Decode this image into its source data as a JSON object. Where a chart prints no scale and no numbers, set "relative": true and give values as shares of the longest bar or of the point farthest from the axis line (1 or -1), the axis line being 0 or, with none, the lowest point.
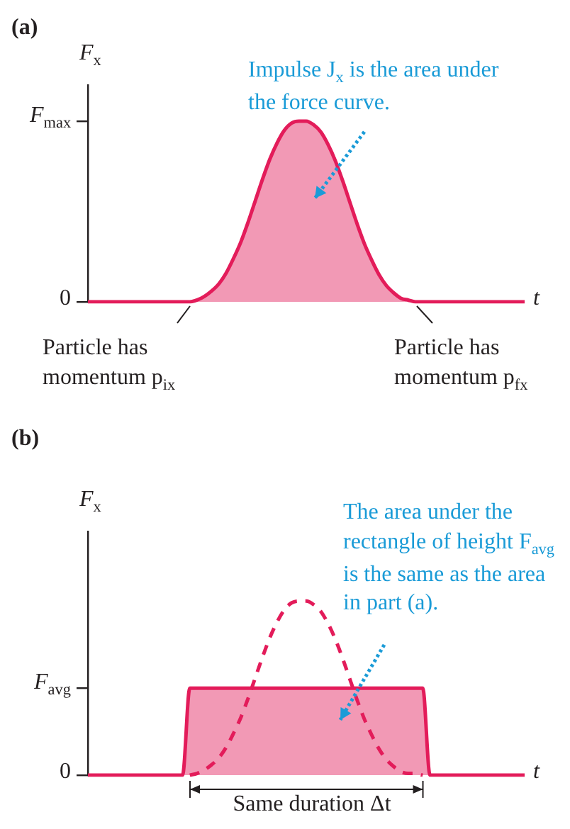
{
  "chart_data": [
    {
      "type": "area",
      "title": "(a)",
      "xlabel": "t",
      "ylabel": "F$_{x}$",
      "marker": "none",
      "categories": [
        null,
        null,
        null,
        null,
        null,
        null,
        null,
        null,
        null,
        null,
        null,
        null,
        null,
        null,
        null,
        null,
        null,
        null,
        null,
        null,
        null,
        null,
        null,
        null,
        null,
        null,
        null,
        null,
        null,
        null,
        null,
        null,
        null,
        null,
        null,
        null,
        null,
        null,
        null,
        null,
        null,
        null,
        null,
        null,
        null,
        null,
        null,
        null,
        null,
        null,
        null,
        null,
        null,
        null,
        null,
        null,
        null,
        null,
        null,
        null,
        null
      ],
      "series": [
        {
          "color": "#e31c5a",
          "values": [
            0,
            0,
            0,
            0,
            0,
            0,
            0,
            0,
            0,
            0,
            0,
            0,
            0,
            0,
            0,
            0.01,
            0.03,
            0.06,
            0.1,
            0.16,
            0.24,
            0.33,
            0.44,
            0.56,
            0.68,
            0.79,
            0.88,
            0.95,
            0.99,
            1,
            1,
            0.98,
            0.94,
            0.87,
            0.78,
            0.67,
            0.55,
            0.43,
            0.32,
            0.23,
            0.15,
            0.09,
            0.05,
            0.02,
            0.01,
            0,
            0,
            0,
            0,
            0,
            0,
            0,
            0,
            0,
            0,
            0,
            0,
            0,
            0,
            0,
            0
          ]
        }
      ],
      "relative": true,
      "annotations": [
        "0",
        "F$_{max}$",
        "Impulse J$_{x}$ is the area under the force curve.",
        "Particle has momentum p$_{ix}$",
        "Particle has momentum p$_{fx}$"
      ]
    },
    {
      "type": "area",
      "title": "(b)",
      "xlabel": "t",
      "ylabel": "F$_{x}$",
      "marker": "none",
      "categories": [
        null,
        null,
        null,
        null,
        null,
        null,
        null,
        null,
        null,
        null,
        null,
        null,
        null,
        null,
        null,
        null,
        null,
        null,
        null,
        null,
        null,
        null,
        null,
        null,
        null,
        null,
        null,
        null,
        null,
        null,
        null,
        null,
        null,
        null,
        null,
        null,
        null,
        null,
        null,
        null,
        null,
        null,
        null,
        null,
        null,
        null,
        null,
        null,
        null,
        null,
        null,
        null,
        null,
        null,
        null,
        null,
        null,
        null,
        null,
        null,
        null
      ],
      "series": [
        {
          "color": "#e31c5a",
          "values": [
            0,
            0,
            0,
            0,
            0,
            0,
            0,
            0,
            0,
            0,
            0,
            0,
            0,
            0,
            0.5,
            0.5,
            0.5,
            0.5,
            0.5,
            0.5,
            0.5,
            0.5,
            0.5,
            0.5,
            0.5,
            0.5,
            0.5,
            0.5,
            0.5,
            0.5,
            0.5,
            0.5,
            0.5,
            0.5,
            0.5,
            0.5,
            0.5,
            0.5,
            0.5,
            0.5,
            0.5,
            0.5,
            0.5,
            0.5,
            0.5,
            0.5,
            0.5,
            0,
            0,
            0,
            0,
            0,
            0,
            0,
            0,
            0,
            0,
            0,
            0,
            0,
            0
          ]
        },
        {
          "type": "line",
          "line_style": "dashed",
          "color": "#e31c5a",
          "values": [
            null,
            null,
            null,
            null,
            null,
            null,
            null,
            null,
            null,
            null,
            null,
            null,
            null,
            null,
            0,
            0.01,
            0.03,
            0.06,
            0.1,
            0.16,
            0.24,
            0.33,
            0.44,
            0.56,
            0.68,
            0.79,
            0.88,
            0.95,
            0.99,
            1,
            1,
            0.98,
            0.94,
            0.87,
            0.78,
            0.67,
            0.55,
            0.43,
            0.32,
            0.23,
            0.15,
            0.09,
            0.05,
            0.02,
            0.01,
            0.01,
            0,
            null,
            null,
            null,
            null,
            null,
            null,
            null,
            null,
            null,
            null,
            null,
            null,
            null,
            null
          ]
        }
      ],
      "relative": true,
      "annotations": [
        "0",
        "F$_{avg}$",
        "The area under the rectangle of height F$_{avg}$ is the same as the area in part (a).",
        "Same duration Δt"
      ]
    }
  ]
}
